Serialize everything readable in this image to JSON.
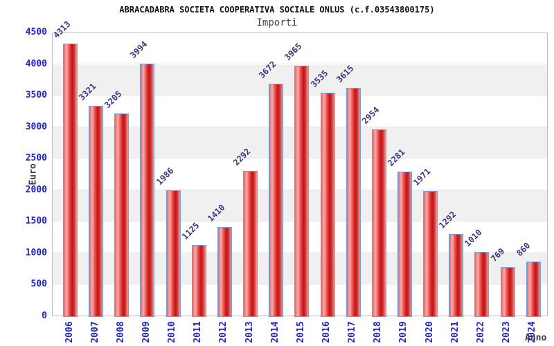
{
  "header": {
    "title": "ABRACADABRA SOCIETA COOPERATIVA SOCIALE ONLUS (c.f.03543800175)",
    "subtitle": "Importi"
  },
  "chart_data": {
    "type": "bar",
    "title": "ABRACADABRA SOCIETA COOPERATIVA SOCIALE ONLUS (c.f.03543800175)",
    "subtitle": "Importi",
    "xlabel": "Anno",
    "ylabel": "Euro",
    "categories": [
      "2006",
      "2007",
      "2008",
      "2009",
      "2010",
      "2011",
      "2012",
      "2013",
      "2014",
      "2015",
      "2016",
      "2017",
      "2018",
      "2019",
      "2020",
      "2021",
      "2022",
      "2023",
      "2024"
    ],
    "values": [
      4313,
      3321,
      3205,
      3994,
      1986,
      1125,
      1410,
      2292,
      3672,
      3965,
      3535,
      3615,
      2954,
      2281,
      1971,
      1292,
      1010,
      769,
      860
    ],
    "ylim": [
      0,
      4500
    ],
    "ytick_step": 500,
    "y_ticks": [
      "0",
      "500",
      "1000",
      "1500",
      "2000",
      "2500",
      "3000",
      "3500",
      "4000",
      "4500"
    ],
    "grid": "horizontal alternating bands every 500",
    "legend": "none",
    "bar_value_labels": true
  },
  "colors": {
    "bar_border": "#68a2e0",
    "bar_red_dark": "#c01212",
    "bar_red_light": "#f4acac",
    "tick_label": "#2323cc",
    "category_label": "#2323cc",
    "value_label": "#343482",
    "axis_title": "#3a3a3a",
    "title": "#111111",
    "subtitle": "#444444",
    "band_gray": "#f0f0f0",
    "grid_line": "#e4e4e4",
    "plot_border": "#bdbdbd",
    "background": "#ffffff"
  }
}
